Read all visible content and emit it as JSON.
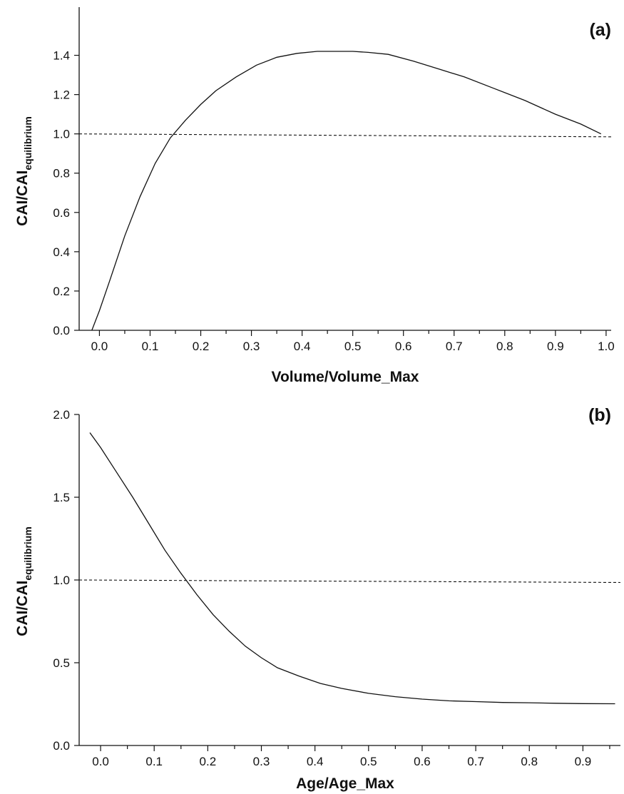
{
  "chart_data": [
    {
      "type": "line",
      "panel_label": "(a)",
      "xlabel": "Volume/Volume_Max",
      "ylabel_main": "CAI/CAI",
      "ylabel_sub": "equilibrium",
      "xlim": [
        -0.04,
        1.01
      ],
      "ylim": [
        0.0,
        1.5
      ],
      "xticks": [
        0.0,
        0.1,
        0.2,
        0.3,
        0.4,
        0.5,
        0.6,
        0.7,
        0.8,
        0.9,
        1.0
      ],
      "xtick_labels": [
        "0.0",
        "0.1",
        "0.2",
        "0.3",
        "0.4",
        "0.5",
        "0.6",
        "0.7",
        "0.8",
        "0.9",
        "1.0"
      ],
      "yticks": [
        0.0,
        0.2,
        0.4,
        0.6,
        0.8,
        1.0,
        1.2,
        1.4
      ],
      "ytick_labels": [
        "0.0",
        "0.2",
        "0.4",
        "0.6",
        "0.8",
        "1.0",
        "1.2",
        "1.4"
      ],
      "series": [
        {
          "x": [
            -0.015,
            0.0,
            0.02,
            0.05,
            0.08,
            0.11,
            0.14,
            0.17,
            0.2,
            0.23,
            0.27,
            0.31,
            0.35,
            0.39,
            0.43,
            0.47,
            0.5,
            0.53,
            0.57,
            0.62,
            0.67,
            0.72,
            0.78,
            0.84,
            0.9,
            0.95,
            0.99
          ],
          "y": [
            0.0,
            0.1,
            0.25,
            0.48,
            0.68,
            0.85,
            0.98,
            1.07,
            1.15,
            1.22,
            1.29,
            1.35,
            1.39,
            1.41,
            1.42,
            1.42,
            1.42,
            1.415,
            1.405,
            1.37,
            1.33,
            1.29,
            1.23,
            1.17,
            1.1,
            1.05,
            1.0
          ],
          "style": "solid"
        },
        {
          "x": [
            -0.04,
            1.01
          ],
          "y": [
            1.0,
            0.985
          ],
          "style": "dashed"
        }
      ]
    },
    {
      "type": "line",
      "panel_label": "(b)",
      "xlabel": "Age/Age_Max",
      "ylabel_main": "CAI/CAI",
      "ylabel_sub": "equilibrium",
      "xlim": [
        -0.04,
        0.97
      ],
      "ylim": [
        0.0,
        2.0
      ],
      "xticks": [
        0.0,
        0.1,
        0.2,
        0.3,
        0.4,
        0.5,
        0.6,
        0.7,
        0.8,
        0.9
      ],
      "xtick_labels": [
        "0.0",
        "0.1",
        "0.2",
        "0.3",
        "0.4",
        "0.5",
        "0.6",
        "0.7",
        "0.8",
        "0.9"
      ],
      "yticks": [
        0.0,
        0.5,
        1.0,
        1.5,
        2.0
      ],
      "ytick_labels": [
        "0.0",
        "0.5",
        "1.0",
        "1.5",
        "2.0"
      ],
      "series": [
        {
          "x": [
            -0.02,
            0.0,
            0.03,
            0.06,
            0.09,
            0.12,
            0.15,
            0.18,
            0.21,
            0.24,
            0.27,
            0.3,
            0.33,
            0.37,
            0.41,
            0.45,
            0.5,
            0.55,
            0.6,
            0.65,
            0.7,
            0.75,
            0.8,
            0.85,
            0.9,
            0.96
          ],
          "y": [
            1.89,
            1.8,
            1.65,
            1.5,
            1.34,
            1.18,
            1.04,
            0.91,
            0.79,
            0.69,
            0.6,
            0.53,
            0.47,
            0.42,
            0.375,
            0.345,
            0.315,
            0.295,
            0.28,
            0.27,
            0.265,
            0.26,
            0.258,
            0.255,
            0.253,
            0.252
          ],
          "style": "solid"
        },
        {
          "x": [
            -0.04,
            0.97
          ],
          "y": [
            1.0,
            0.985
          ],
          "style": "dashed"
        }
      ]
    }
  ]
}
